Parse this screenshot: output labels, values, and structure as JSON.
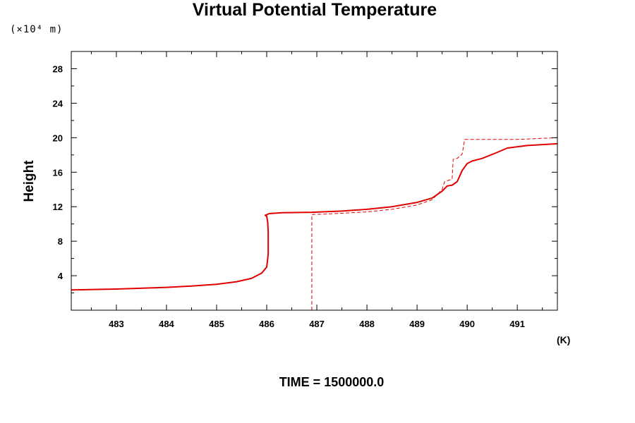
{
  "chart_data": {
    "type": "line",
    "title": "Virtual Potential Temperature",
    "yunits": "(×10⁴ m)",
    "ylabel": "Height",
    "xunit_label": "(K)",
    "footer": "TIME = 1500000.0",
    "xlim": [
      482.1,
      491.8
    ],
    "ylim": [
      0,
      30
    ],
    "xticks": [
      483,
      484,
      485,
      486,
      487,
      488,
      489,
      490,
      491
    ],
    "yticks": [
      4,
      8,
      12,
      16,
      20,
      24,
      28
    ],
    "line_color": "#e00000",
    "series": [
      {
        "style": "solid",
        "points": [
          [
            482.1,
            2.35
          ],
          [
            483,
            2.45
          ],
          [
            484,
            2.65
          ],
          [
            484.5,
            2.8
          ],
          [
            485,
            3.0
          ],
          [
            485.4,
            3.3
          ],
          [
            485.7,
            3.7
          ],
          [
            485.9,
            4.3
          ],
          [
            486.0,
            5.0
          ],
          [
            486.03,
            6.5
          ],
          [
            486.03,
            9.0
          ],
          [
            486.02,
            10.2
          ],
          [
            486.0,
            10.9
          ],
          [
            485.97,
            11.0
          ],
          [
            486.05,
            11.2
          ],
          [
            486.3,
            11.3
          ],
          [
            486.9,
            11.35
          ],
          [
            487.5,
            11.5
          ],
          [
            488.0,
            11.7
          ],
          [
            488.5,
            12.0
          ],
          [
            489.0,
            12.5
          ],
          [
            489.3,
            13.0
          ],
          [
            489.5,
            13.8
          ],
          [
            489.6,
            14.4
          ],
          [
            489.7,
            14.5
          ],
          [
            489.8,
            14.9
          ],
          [
            489.9,
            16.2
          ],
          [
            490.0,
            17.0
          ],
          [
            490.1,
            17.3
          ],
          [
            490.3,
            17.6
          ],
          [
            490.6,
            18.3
          ],
          [
            490.8,
            18.8
          ],
          [
            491.2,
            19.1
          ],
          [
            491.8,
            19.3
          ]
        ]
      },
      {
        "style": "dashed",
        "points": [
          [
            486.9,
            0
          ],
          [
            486.9,
            11.1
          ],
          [
            487.2,
            11.15
          ],
          [
            488.0,
            11.4
          ],
          [
            488.5,
            11.7
          ],
          [
            489.0,
            12.2
          ],
          [
            489.3,
            12.8
          ],
          [
            489.5,
            14.0
          ],
          [
            489.55,
            14.9
          ],
          [
            489.7,
            15.2
          ],
          [
            489.72,
            17.5
          ],
          [
            489.8,
            17.6
          ],
          [
            489.9,
            18.1
          ],
          [
            489.95,
            19.8
          ],
          [
            491.0,
            19.8
          ],
          [
            491.8,
            20.0
          ]
        ]
      }
    ]
  }
}
